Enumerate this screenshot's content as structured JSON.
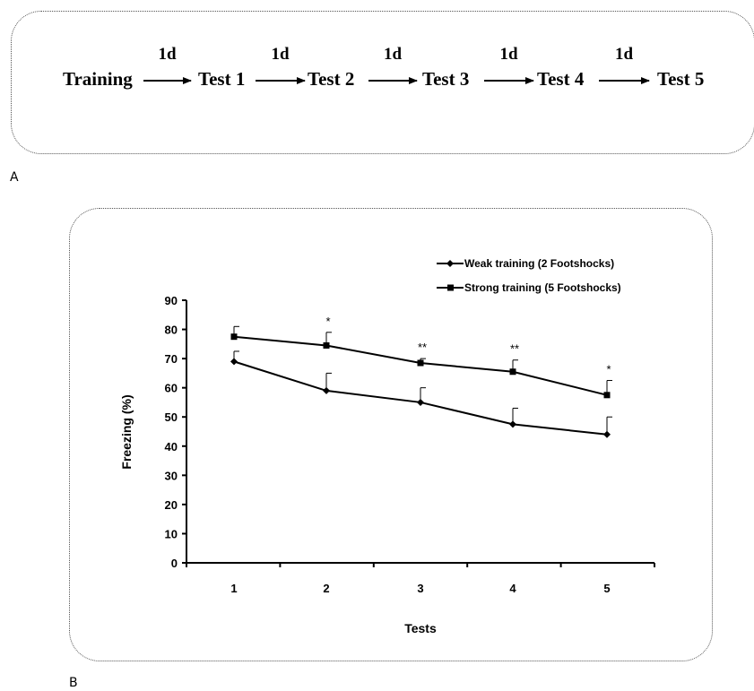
{
  "panel_a": {
    "label": "A",
    "steps": [
      "Training",
      "Test 1",
      "Test 2",
      "Test 3",
      "Test 4",
      "Test 5"
    ],
    "intervals": [
      "1d",
      "1d",
      "1d",
      "1d",
      "1d"
    ]
  },
  "panel_b": {
    "label": "B"
  },
  "chart_data": {
    "type": "line",
    "title": "",
    "xlabel": "Tests",
    "ylabel": "Freezing (%)",
    "categories": [
      "1",
      "2",
      "3",
      "4",
      "5"
    ],
    "ylim": [
      0,
      90
    ],
    "yticks": [
      "0",
      "10",
      "20",
      "30",
      "40",
      "50",
      "60",
      "70",
      "80",
      "90"
    ],
    "grid": false,
    "legend_position": "top-right",
    "series": [
      {
        "name": "Weak training (2 Footshocks)",
        "marker": "diamond",
        "values": [
          69,
          59,
          55,
          47.5,
          44
        ],
        "error": [
          3.5,
          6,
          5,
          5.5,
          6
        ]
      },
      {
        "name": "Strong training (5 Footshocks)",
        "marker": "square",
        "values": [
          77.5,
          74.5,
          68.5,
          65.5,
          57.5
        ],
        "error": [
          3.5,
          4.5,
          1.5,
          4,
          5
        ]
      }
    ],
    "annotations": [
      "",
      "*",
      "**",
      "**",
      "*"
    ],
    "colors": {
      "line": "#000000"
    }
  }
}
